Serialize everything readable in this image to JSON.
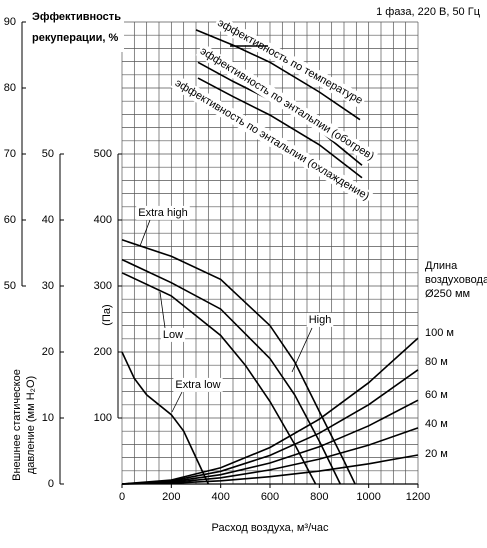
{
  "chart_data": {
    "type": "line",
    "note": "1 фаза, 220 В, 50 Гц",
    "xlabel": "Расход воздуха, м³/час",
    "ylabel": "(Па)",
    "y2label": [
      "Внешнее статическое",
      "давление (мм H₂O)"
    ],
    "y3label": [
      "Эффективность",
      "рекуперации, %"
    ],
    "duct_legend_title": [
      "Длина",
      "воздуховода",
      "Ø250 мм"
    ],
    "xlim": [
      0,
      1200
    ],
    "xticks": [
      0,
      200,
      400,
      600,
      800,
      1000,
      1200
    ],
    "ylim": [
      0,
      700
    ],
    "yticks": [
      100,
      200,
      300,
      400,
      500
    ],
    "y2lim": [
      0,
      70
    ],
    "y2ticks": [
      0,
      10,
      20,
      30,
      40,
      50
    ],
    "y3lim": [
      20,
      90
    ],
    "y3ticks": [
      50,
      60,
      70,
      80,
      90
    ],
    "grid": true,
    "xgrid": [
      0,
      50,
      100,
      150,
      200,
      250,
      300,
      350,
      400,
      450,
      500,
      550,
      600,
      650,
      700,
      750,
      800,
      850,
      900,
      950,
      1000,
      1050,
      1100,
      1150,
      1200
    ],
    "ygrid": [
      0,
      20,
      40,
      60,
      80,
      100,
      120,
      140,
      160,
      180,
      200,
      220,
      240,
      260,
      280,
      300,
      320,
      340,
      360,
      380,
      400,
      420,
      440,
      460,
      480,
      500,
      520,
      540,
      560,
      580,
      600,
      620,
      640,
      660,
      680,
      700
    ],
    "series": [
      {
        "name": "Extra high",
        "color": "#000000",
        "axis": "y",
        "x": [
          0,
          200,
          400,
          600,
          700,
          800,
          900,
          945
        ],
        "values": [
          370,
          345,
          310,
          240,
          185,
          110,
          35,
          0
        ]
      },
      {
        "name": "High",
        "color": "#000000",
        "axis": "y",
        "x": [
          0,
          200,
          400,
          600,
          700,
          800,
          885
        ],
        "values": [
          340,
          305,
          265,
          190,
          135,
          65,
          0
        ]
      },
      {
        "name": "Low",
        "color": "#000000",
        "axis": "y",
        "x": [
          0,
          200,
          400,
          500,
          600,
          700,
          785
        ],
        "values": [
          320,
          285,
          225,
          180,
          125,
          60,
          0
        ]
      },
      {
        "name": "Extra low",
        "color": "#000000",
        "axis": "y",
        "x": [
          0,
          50,
          100,
          200,
          250,
          300,
          350
        ],
        "values": [
          200,
          160,
          135,
          105,
          80,
          40,
          0
        ]
      },
      {
        "name": "100 м",
        "color": "#000000",
        "axis": "y",
        "x": [
          0,
          200,
          400,
          600,
          800,
          1000,
          1200
        ],
        "values": [
          0,
          6.1,
          24.6,
          55.3,
          98.2,
          153.5,
          221
        ]
      },
      {
        "name": "80 м",
        "color": "#000000",
        "axis": "y",
        "x": [
          0,
          200,
          400,
          600,
          800,
          1000,
          1200
        ],
        "values": [
          0,
          4.8,
          19.2,
          43.3,
          76.9,
          120.1,
          173
        ]
      },
      {
        "name": "60 м",
        "color": "#000000",
        "axis": "y",
        "x": [
          0,
          200,
          400,
          600,
          800,
          1000,
          1200
        ],
        "values": [
          0,
          3.5,
          14.1,
          31.8,
          56.4,
          88.2,
          127
        ]
      },
      {
        "name": "40 м",
        "color": "#000000",
        "axis": "y",
        "x": [
          0,
          200,
          400,
          600,
          800,
          1000,
          1200
        ],
        "values": [
          0,
          2.4,
          9.4,
          21.3,
          37.8,
          59.0,
          85
        ]
      },
      {
        "name": "20 м",
        "color": "#000000",
        "axis": "y",
        "x": [
          0,
          200,
          400,
          600,
          800,
          1000,
          1200
        ],
        "values": [
          0,
          1.2,
          4.9,
          11.0,
          19.6,
          30.6,
          44
        ]
      },
      {
        "name": "эффективность по температуре",
        "color": "#000000",
        "axis": "y3",
        "x": [
          300,
          450,
          600,
          800,
          965
        ],
        "values": [
          88.8,
          86.5,
          83.9,
          79.4,
          75.2
        ]
      },
      {
        "name": "эффективность по энтальпии (обогрев)",
        "color": "#000000",
        "axis": "y3",
        "x": [
          308,
          450,
          600,
          800,
          973
        ],
        "values": [
          83.9,
          81.0,
          78.2,
          73.6,
          68.3
        ]
      },
      {
        "name": "эффективность по энтальпии (охлаждение)",
        "color": "#000000",
        "axis": "y3",
        "x": [
          308,
          450,
          600,
          800,
          973
        ],
        "values": [
          81.5,
          78.7,
          75.9,
          71.4,
          66.4
        ]
      }
    ]
  }
}
